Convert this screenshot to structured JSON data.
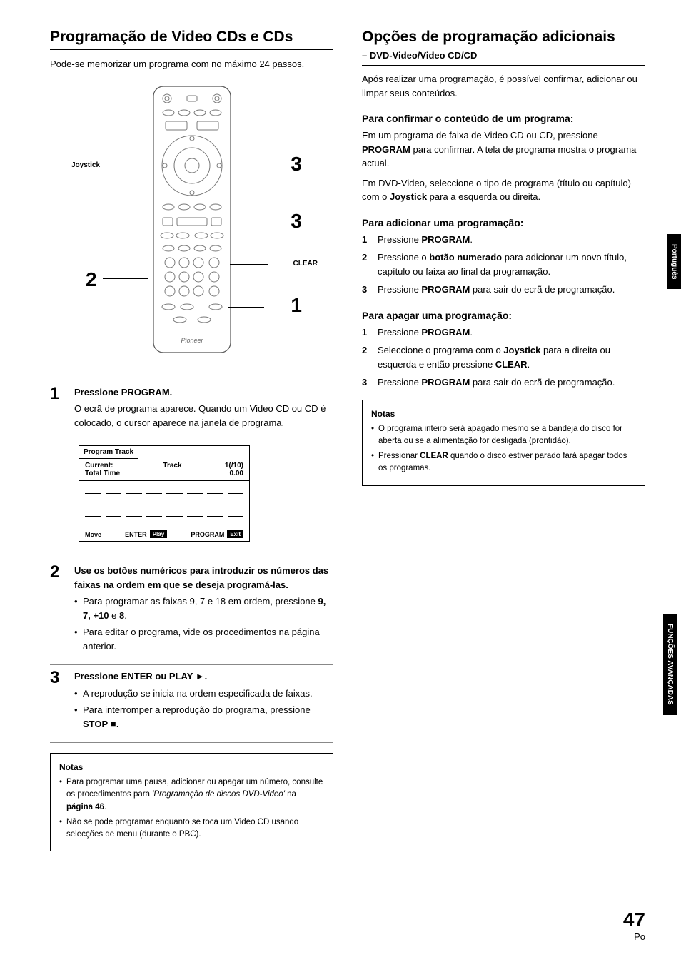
{
  "left": {
    "title": "Programação de Video CDs e CDs",
    "intro": "Pode-se memorizar um programa com no máximo 24 passos.",
    "remote": {
      "label_joystick": "Joystick",
      "label_clear": "CLEAR",
      "callout_1": "1",
      "callout_2": "2",
      "callout_3a": "3",
      "callout_3b": "3"
    },
    "steps": [
      {
        "num": "1",
        "head": "Pressione PROGRAM.",
        "body": "O ecrã de programa aparece. Quando um Video CD ou CD é colocado, o cursor aparece na janela de programa."
      },
      {
        "num": "2",
        "head": "Use os botões numéricos para introduzir os números das faixas na ordem em que se deseja programá-las.",
        "bullets": [
          "Para programar as faixas 9, 7 e 18 em ordem, pressione <b>9, 7, +10</b> e <b>8</b>.",
          "Para editar o programa, vide os procedimentos na página anterior."
        ]
      },
      {
        "num": "3",
        "head": "Pressione ENTER ou PLAY ►.",
        "bullets": [
          "A reprodução se inicia na ordem especificada de faixas.",
          "Para interromper a reprodução do programa, pressione <b>STOP</b> ■."
        ]
      }
    ],
    "screen": {
      "tab": "Program Track",
      "current_label": "Current:",
      "total_label": "Total Time",
      "track_label": "Track",
      "track_val": "1(/10)",
      "time_val": "0.00",
      "move": "Move",
      "enter": "ENTER",
      "play": "Play",
      "program": "PROGRAM",
      "exit": "Exit"
    },
    "notes": {
      "title": "Notas",
      "items": [
        "Para programar uma pausa, adicionar ou apagar um número, consulte os procedimentos para <i>'Programação de discos DVD-Video'</i> na <b>página 46</b>.",
        "Não se pode programar enquanto se toca um Video CD usando selecções de menu (durante o PBC)."
      ]
    }
  },
  "right": {
    "title": "Opções de programação adicionais",
    "subtitle": "– DVD-Video/Video CD/CD",
    "intro": "Após realizar uma programação, é possível confirmar, adicionar ou limpar seus conteúdos.",
    "confirm": {
      "head": "Para confirmar o conteúdo de um programa:",
      "p1": "Em um programa de faixa de Video CD ou CD, pressione <b>PROGRAM</b> para confirmar. A tela de programa mostra o programa actual.",
      "p2": "Em DVD-Video, seleccione o tipo de programa (título ou capítulo) com o <b>Joystick</b> para a esquerda ou direita."
    },
    "add": {
      "head": "Para adicionar uma programação:",
      "steps": [
        "Pressione <b>PROGRAM</b>.",
        "Pressione o <b>botão numerado</b> para adicionar um novo título, capítulo ou faixa ao final da programação.",
        "Pressione <b>PROGRAM</b> para sair do ecrã de programação."
      ]
    },
    "erase": {
      "head": "Para apagar uma programação:",
      "steps": [
        "Pressione <b>PROGRAM</b>.",
        "Seleccione o programa com o <b>Joystick</b> para a direita ou esquerda e então pressione <b>CLEAR</b>.",
        "Pressione <b>PROGRAM</b> para sair do ecrã de programação."
      ]
    },
    "notes": {
      "title": "Notas",
      "items": [
        "O programa inteiro será apagado mesmo se a bandeja do disco for aberta ou se a alimentação for desligada (prontidão).",
        "Pressionar <b>CLEAR</b> quando o disco estiver parado fará apagar todos os programas."
      ]
    }
  },
  "side": {
    "lang": "Português",
    "section": "FUNÇÕES AVANÇADAS"
  },
  "footer": {
    "page": "47",
    "lang": "Po"
  }
}
